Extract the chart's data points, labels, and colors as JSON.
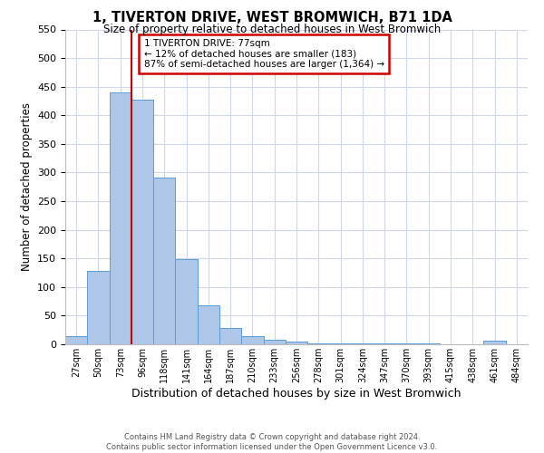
{
  "title": "1, TIVERTON DRIVE, WEST BROMWICH, B71 1DA",
  "subtitle": "Size of property relative to detached houses in West Bromwich",
  "xlabel": "Distribution of detached houses by size in West Bromwich",
  "ylabel": "Number of detached properties",
  "bar_labels": [
    "27sqm",
    "50sqm",
    "73sqm",
    "96sqm",
    "118sqm",
    "141sqm",
    "164sqm",
    "187sqm",
    "210sqm",
    "233sqm",
    "256sqm",
    "278sqm",
    "301sqm",
    "324sqm",
    "347sqm",
    "370sqm",
    "393sqm",
    "415sqm",
    "438sqm",
    "461sqm",
    "484sqm"
  ],
  "bar_values": [
    15,
    128,
    440,
    427,
    292,
    148,
    68,
    29,
    14,
    8,
    5,
    2,
    1,
    1,
    1,
    1,
    1,
    0,
    0,
    6,
    0
  ],
  "bar_color": "#aec6e8",
  "bar_edge_color": "#5b9bd5",
  "vline_color": "#cc0000",
  "annotation_title": "1 TIVERTON DRIVE: 77sqm",
  "annotation_line1": "← 12% of detached houses are smaller (183)",
  "annotation_line2": "87% of semi-detached houses are larger (1,364) →",
  "annotation_box_color": "#cc0000",
  "ylim": [
    0,
    550
  ],
  "yticks": [
    0,
    50,
    100,
    150,
    200,
    250,
    300,
    350,
    400,
    450,
    500,
    550
  ],
  "footer_line1": "Contains HM Land Registry data © Crown copyright and database right 2024.",
  "footer_line2": "Contains public sector information licensed under the Open Government Licence v3.0.",
  "background_color": "#ffffff",
  "grid_color": "#d0d8e8"
}
